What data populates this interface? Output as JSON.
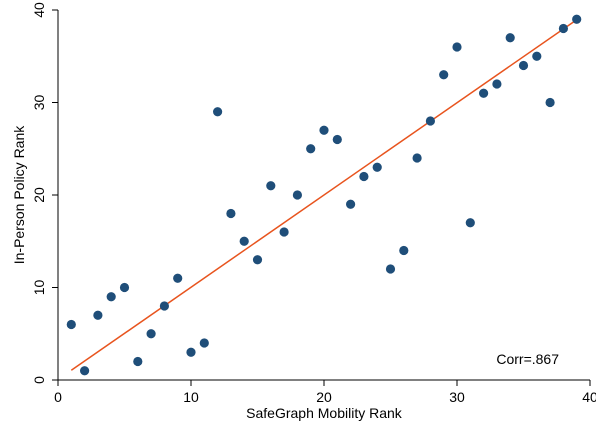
{
  "chart_data": {
    "type": "scatter",
    "xlabel": "SafeGraph Mobility Rank",
    "ylabel": "In-Person Policy Rank",
    "xlim": [
      0,
      40
    ],
    "ylim": [
      0,
      40
    ],
    "xticks": [
      0,
      10,
      20,
      30,
      40
    ],
    "yticks": [
      0,
      10,
      20,
      30,
      40
    ],
    "grid": false,
    "annotation": "Corr=.867",
    "marker_color": "#1f4e79",
    "fit_line_color": "#e8541e",
    "points": [
      {
        "x": 1,
        "y": 6
      },
      {
        "x": 2,
        "y": 1
      },
      {
        "x": 3,
        "y": 7
      },
      {
        "x": 4,
        "y": 9
      },
      {
        "x": 5,
        "y": 10
      },
      {
        "x": 6,
        "y": 2
      },
      {
        "x": 7,
        "y": 5
      },
      {
        "x": 8,
        "y": 8
      },
      {
        "x": 9,
        "y": 11
      },
      {
        "x": 10,
        "y": 3
      },
      {
        "x": 11,
        "y": 4
      },
      {
        "x": 12,
        "y": 29
      },
      {
        "x": 13,
        "y": 18
      },
      {
        "x": 14,
        "y": 15
      },
      {
        "x": 15,
        "y": 13
      },
      {
        "x": 16,
        "y": 21
      },
      {
        "x": 17,
        "y": 16
      },
      {
        "x": 18,
        "y": 20
      },
      {
        "x": 19,
        "y": 25
      },
      {
        "x": 20,
        "y": 27
      },
      {
        "x": 21,
        "y": 26
      },
      {
        "x": 22,
        "y": 19
      },
      {
        "x": 23,
        "y": 22
      },
      {
        "x": 24,
        "y": 23
      },
      {
        "x": 25,
        "y": 12
      },
      {
        "x": 26,
        "y": 14
      },
      {
        "x": 27,
        "y": 24
      },
      {
        "x": 28,
        "y": 28
      },
      {
        "x": 29,
        "y": 33
      },
      {
        "x": 30,
        "y": 36
      },
      {
        "x": 31,
        "y": 17
      },
      {
        "x": 32,
        "y": 31
      },
      {
        "x": 33,
        "y": 32
      },
      {
        "x": 34,
        "y": 37
      },
      {
        "x": 35,
        "y": 34
      },
      {
        "x": 36,
        "y": 35
      },
      {
        "x": 37,
        "y": 30
      },
      {
        "x": 38,
        "y": 38
      },
      {
        "x": 39,
        "y": 39
      }
    ],
    "fit_line": {
      "x": [
        1,
        39
      ],
      "y": [
        1.05,
        38.95
      ]
    }
  }
}
